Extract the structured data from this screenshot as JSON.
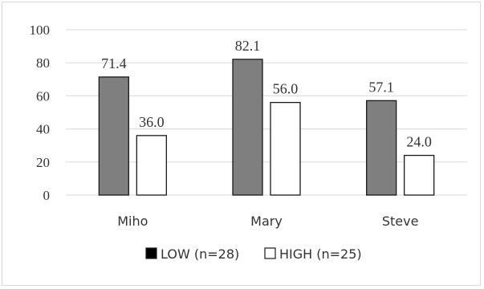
{
  "chart_data": {
    "type": "bar",
    "categories": [
      "Miho",
      "Mary",
      "Steve"
    ],
    "series": [
      {
        "name": "LOW (n=28)",
        "values": [
          71.4,
          82.1,
          57.1
        ],
        "labels": [
          "71.4",
          "82.1",
          "57.1"
        ],
        "color": "#7f7f7f"
      },
      {
        "name": "HIGH (n=25)",
        "values": [
          36.0,
          56.0,
          24.0
        ],
        "labels": [
          "36.0",
          "56.0",
          "24.0"
        ],
        "color": "#ffffff"
      }
    ],
    "title": "",
    "xlabel": "",
    "ylabel": "",
    "ylim": [
      0,
      100
    ],
    "yticks": [
      "0",
      "20",
      "40",
      "60",
      "80",
      "100"
    ],
    "grid": true,
    "legend_position": "bottom"
  }
}
